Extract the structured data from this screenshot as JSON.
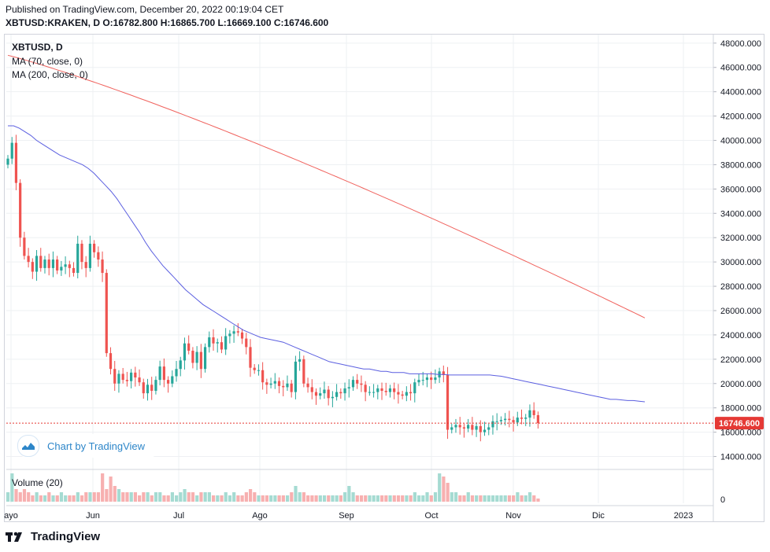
{
  "header": {
    "published": "Published on TradingView.com, December 20, 2022 00:19:04 CET",
    "symbol": "XBTUSD:KRAKEN, D",
    "ohlc": "O:16782.800 H:16865.700 L:16669.100 C:16746.600"
  },
  "legend": {
    "symbol": "XBTUSD, D",
    "ma70": "MA (70, close, 0)",
    "ma200": "MA (200, close, 0)",
    "volume": "Volume (20)"
  },
  "badge": {
    "label": "Chart by TradingView",
    "icon": "tradingview-cloud-icon"
  },
  "footer": {
    "brand": "TradingView",
    "icon": "tradingview-logo-icon"
  },
  "colors": {
    "up": "#26a69a",
    "down": "#ef5350",
    "ma70": "#5b5fe0",
    "ma200": "#f0625d",
    "volUp": "#a5dbd2",
    "volDown": "#f7b0b0",
    "price": "#e53935"
  },
  "chart_data": {
    "type": "candlestick",
    "title": "XBTUSD, D",
    "y_axis": {
      "ylim": [
        13000,
        48700
      ],
      "ticks": [
        "48000.000",
        "46000.000",
        "44000.000",
        "42000.000",
        "40000.000",
        "38000.000",
        "36000.000",
        "34000.000",
        "32000.000",
        "30000.000",
        "28000.000",
        "26000.000",
        "24000.000",
        "22000.000",
        "20000.000",
        "18000.000",
        "16000.000",
        "14000.000"
      ]
    },
    "x_axis": {
      "labels": [
        "ayo",
        "Jun",
        "Jul",
        "Ago",
        "Sep",
        "Oct",
        "Nov",
        "Dic",
        "2023"
      ]
    },
    "current_price_label": "16746.600",
    "current_price": 16746.6,
    "grid": true,
    "close": [
      38500,
      39800,
      36500,
      32000,
      30500,
      30000,
      29200,
      30500,
      29500,
      30200,
      29500,
      30200,
      29300,
      29600,
      29800,
      29500,
      29100,
      31500,
      30000,
      29500,
      31500,
      30800,
      30200,
      29100,
      22500,
      21200,
      20000,
      20800,
      20300,
      20200,
      20900,
      20500,
      20100,
      19200,
      19900,
      19400,
      20300,
      21400,
      20300,
      20000,
      20600,
      21200,
      21900,
      23300,
      22700,
      21700,
      22600,
      21200,
      23000,
      23800,
      23300,
      23400,
      22800,
      23900,
      24100,
      24300,
      24200,
      23700,
      23000,
      21300,
      21100,
      21100,
      20100,
      19900,
      20000,
      20200,
      19800,
      19700,
      20000,
      19300,
      21800,
      22000,
      20000,
      19700,
      19300,
      19000,
      19200,
      19500,
      18800,
      18900,
      19300,
      19200,
      19600,
      19700,
      20300,
      20000,
      19900,
      19300,
      19300,
      19300,
      19600,
      19400,
      19300,
      19600,
      19300,
      19100,
      19000,
      19300,
      19200,
      20100,
      20300,
      20300,
      20500,
      20300,
      20500,
      21000,
      20700,
      16200,
      16400,
      16600,
      16400,
      16300,
      16600,
      16200,
      16500,
      16000,
      16200,
      16400,
      16900,
      16900,
      17000,
      17100,
      17000,
      16800,
      17200,
      17100,
      17200,
      17800,
      17400,
      16750
    ],
    "volume_relative": [
      0.3,
      0.9,
      0.4,
      0.3,
      0.4,
      0.3,
      0.2,
      0.3,
      0.2,
      0.2,
      0.3,
      0.2,
      0.2,
      0.3,
      0.2,
      0.2,
      0.2,
      0.3,
      0.2,
      0.3,
      0.3,
      0.3,
      0.3,
      0.9,
      0.4,
      0.8,
      0.5,
      0.4,
      0.3,
      0.3,
      0.3,
      0.3,
      0.2,
      0.3,
      0.3,
      0.2,
      0.3,
      0.3,
      0.2,
      0.2,
      0.3,
      0.2,
      0.3,
      0.4,
      0.3,
      0.3,
      0.2,
      0.3,
      0.3,
      0.3,
      0.2,
      0.2,
      0.2,
      0.3,
      0.2,
      0.3,
      0.2,
      0.2,
      0.3,
      0.4,
      0.3,
      0.2,
      0.2,
      0.2,
      0.2,
      0.2,
      0.2,
      0.2,
      0.2,
      0.3,
      0.5,
      0.3,
      0.3,
      0.2,
      0.2,
      0.2,
      0.2,
      0.2,
      0.2,
      0.2,
      0.2,
      0.2,
      0.3,
      0.5,
      0.3,
      0.2,
      0.2,
      0.2,
      0.2,
      0.2,
      0.2,
      0.2,
      0.2,
      0.2,
      0.2,
      0.2,
      0.2,
      0.2,
      0.2,
      0.3,
      0.2,
      0.2,
      0.3,
      0.2,
      0.3,
      0.9,
      0.8,
      0.6,
      0.3,
      0.3,
      0.2,
      0.2,
      0.3,
      0.2,
      0.2,
      0.2,
      0.2,
      0.2,
      0.2,
      0.2,
      0.2,
      0.2,
      0.2,
      0.2,
      0.3,
      0.2,
      0.2,
      0.3,
      0.2,
      0.1
    ],
    "ma70": [
      41200,
      41200,
      41000,
      40700,
      40400,
      40000,
      39700,
      39400,
      39100,
      38800,
      38600,
      38400,
      38200,
      38000,
      37700,
      37300,
      36800,
      36300,
      35800,
      35200,
      34500,
      33800,
      33100,
      32400,
      31600,
      30900,
      30300,
      29700,
      29200,
      28700,
      28200,
      27700,
      27300,
      26900,
      26500,
      26200,
      25900,
      25600,
      25300,
      25000,
      24700,
      24400,
      24200,
      24000,
      23800,
      23700,
      23600,
      23500,
      23400,
      23200,
      23000,
      22800,
      22600,
      22400,
      22200,
      22000,
      21800,
      21700,
      21600,
      21500,
      21400,
      21300,
      21200,
      21200,
      21100,
      21000,
      21000,
      20900,
      20900,
      20900,
      20800,
      20800,
      20800,
      20800,
      20800,
      20750,
      20750,
      20700,
      20700,
      20700,
      20700,
      20700,
      20700,
      20700,
      20700,
      20650,
      20600,
      20500,
      20400,
      20300,
      20200,
      20100,
      20000,
      19900,
      19800,
      19700,
      19600,
      19500,
      19400,
      19300,
      19200,
      19100,
      19000,
      18900,
      18800,
      18700,
      18700,
      18650,
      18600,
      18600,
      18550,
      18500
    ]
  }
}
